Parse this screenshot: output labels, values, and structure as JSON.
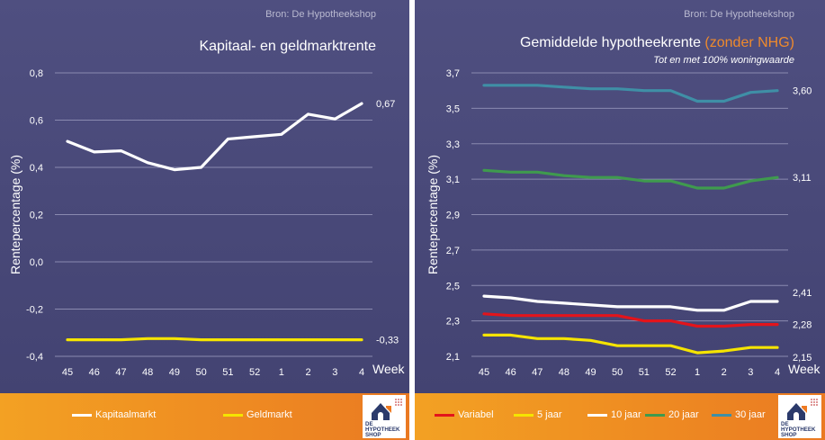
{
  "charts": [
    {
      "source": "Bron: De Hypotheekshop",
      "title": "Kapitaal- en geldmarktrente",
      "title_highlight": "",
      "subtitle": "",
      "legend": [
        "Kapitaalmarkt",
        "Geldmarkt"
      ],
      "end_labels": [
        "0,67",
        "-0,33"
      ]
    },
    {
      "source": "Bron: De Hypotheekshop",
      "title": "Gemiddelde hypotheekrente ",
      "title_highlight": "(zonder NHG)",
      "subtitle": "Tot en met 100% woningwaarde",
      "legend": [
        "Variabel",
        "5 jaar",
        "10 jaar",
        "20 jaar",
        "30 jaar"
      ],
      "end_labels": [
        "2,28",
        "2,15",
        "2,41",
        "3,11",
        "3,60"
      ]
    }
  ],
  "logo": {
    "lines": [
      "DE",
      "HYPOTHEEK",
      "SHOP"
    ],
    "colors": {
      "navy": "#2b3a6b",
      "orange": "#ee7a22",
      "dots": "#c94a4a"
    }
  },
  "colors": {
    "background": "#4a4a78",
    "legend_bar": "#ef8c22",
    "Kapitaalmarkt": "#ffffff",
    "Geldmarkt": "#f5e400",
    "Variabel": "#e3141b",
    "5 jaar": "#f5e400",
    "10 jaar": "#ffffff",
    "20 jaar": "#3f9a4e",
    "30 jaar": "#3f8fa6",
    "title_highlight": "#ef8a2c"
  },
  "chart_data": [
    {
      "type": "line",
      "title": "Kapitaal- en geldmarktrente",
      "xlabel": "Week",
      "ylabel": "Rentepercentage (%)",
      "categories": [
        "45",
        "46",
        "47",
        "48",
        "49",
        "50",
        "51",
        "52",
        "1",
        "2",
        "3",
        "4"
      ],
      "ylim": [
        -0.4,
        0.8
      ],
      "yticks": [
        "-0,4",
        "-0,2",
        "0,0",
        "0,2",
        "0,4",
        "0,6",
        "0,8"
      ],
      "yticks_values": [
        -0.4,
        -0.2,
        0.0,
        0.2,
        0.4,
        0.6,
        0.8
      ],
      "grid": true,
      "legend_position": "bottom",
      "series": [
        {
          "name": "Kapitaalmarkt",
          "values": [
            0.51,
            0.465,
            0.47,
            0.42,
            0.39,
            0.4,
            0.52,
            0.53,
            0.54,
            0.625,
            0.605,
            0.67
          ]
        },
        {
          "name": "Geldmarkt",
          "values": [
            -0.33,
            -0.33,
            -0.33,
            -0.325,
            -0.325,
            -0.33,
            -0.33,
            -0.33,
            -0.33,
            -0.33,
            -0.33,
            -0.33
          ]
        }
      ]
    },
    {
      "type": "line",
      "title": "Gemiddelde hypotheekrente (zonder NHG)",
      "subtitle": "Tot en met 100% woningwaarde",
      "xlabel": "Week",
      "ylabel": "Rentepercentage (%)",
      "categories": [
        "45",
        "46",
        "47",
        "48",
        "49",
        "50",
        "51",
        "52",
        "1",
        "2",
        "3",
        "4"
      ],
      "ylim": [
        2.1,
        3.7
      ],
      "yticks": [
        "2,1",
        "2,3",
        "2,5",
        "2,7",
        "2,9",
        "3,1",
        "3,3",
        "3,5",
        "3,7"
      ],
      "yticks_values": [
        2.1,
        2.3,
        2.5,
        2.7,
        2.9,
        3.1,
        3.3,
        3.5,
        3.7
      ],
      "grid": true,
      "legend_position": "bottom",
      "series": [
        {
          "name": "Variabel",
          "values": [
            2.34,
            2.33,
            2.33,
            2.33,
            2.33,
            2.33,
            2.3,
            2.3,
            2.27,
            2.27,
            2.28,
            2.28
          ]
        },
        {
          "name": "5 jaar",
          "values": [
            2.22,
            2.22,
            2.2,
            2.2,
            2.19,
            2.16,
            2.16,
            2.16,
            2.12,
            2.13,
            2.15,
            2.15
          ]
        },
        {
          "name": "10 jaar",
          "values": [
            2.44,
            2.43,
            2.41,
            2.4,
            2.39,
            2.38,
            2.38,
            2.38,
            2.36,
            2.36,
            2.41,
            2.41
          ]
        },
        {
          "name": "20 jaar",
          "values": [
            3.15,
            3.14,
            3.14,
            3.12,
            3.11,
            3.11,
            3.09,
            3.09,
            3.05,
            3.05,
            3.09,
            3.11
          ]
        },
        {
          "name": "30 jaar",
          "values": [
            3.63,
            3.63,
            3.63,
            3.62,
            3.61,
            3.61,
            3.6,
            3.6,
            3.54,
            3.54,
            3.59,
            3.6
          ]
        }
      ]
    }
  ]
}
